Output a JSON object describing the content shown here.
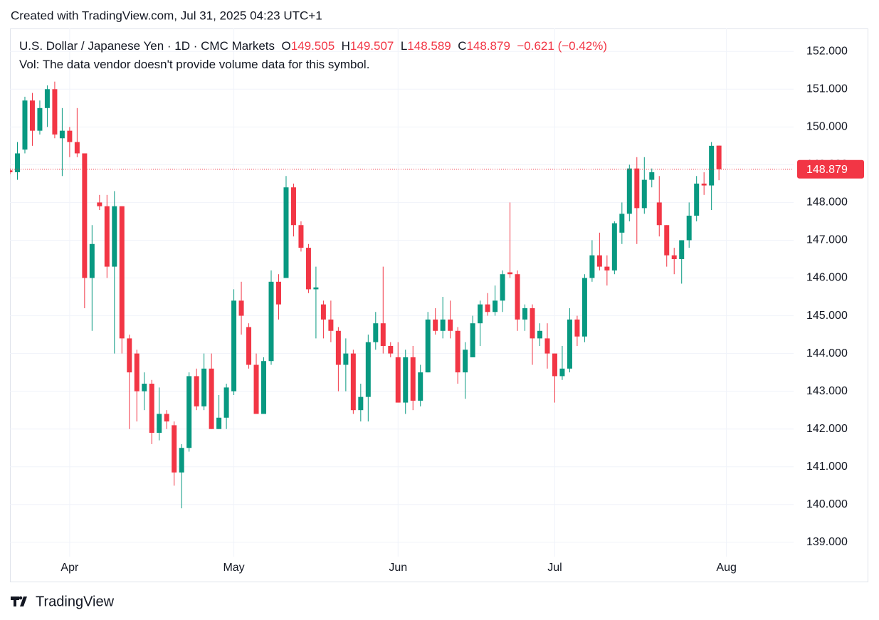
{
  "chart_data": {
    "type": "candlestick",
    "created": "Created with TradingView.com, Jul 31, 2025 04:23 UTC+1",
    "title": "U.S. Dollar / Japanese Yen · 1D · CMC Markets",
    "ohlc_labels": [
      "O",
      "H",
      "L",
      "C"
    ],
    "change": "−0.621 (−0.42%)",
    "volume_note": "Vol: The data vendor doesn't provide volume data for this symbol.",
    "brand": "TradingView",
    "up_color": "#089981",
    "down_color": "#f23645",
    "grid": true,
    "xlim": [
      0,
      105
    ],
    "xticks": [
      {
        "value": 8,
        "label": "Apr"
      },
      {
        "value": 30,
        "label": "May"
      },
      {
        "value": 52,
        "label": "Jun"
      },
      {
        "value": 73,
        "label": "Jul"
      },
      {
        "value": 96,
        "label": "Aug"
      }
    ],
    "ylim": [
      138.62,
      152.57
    ],
    "yticks": [
      {
        "value": 139,
        "label": "139.000"
      },
      {
        "value": 140,
        "label": "140.000"
      },
      {
        "value": 141,
        "label": "141.000"
      },
      {
        "value": 142,
        "label": "142.000"
      },
      {
        "value": 143,
        "label": "143.000"
      },
      {
        "value": 144,
        "label": "144.000"
      },
      {
        "value": 145,
        "label": "145.000"
      },
      {
        "value": 146,
        "label": "146.000"
      },
      {
        "value": 147,
        "label": "147.000"
      },
      {
        "value": 148,
        "label": "148.000"
      },
      {
        "value": 149,
        "label": "149.000"
      },
      {
        "value": 150,
        "label": "150.000"
      },
      {
        "value": 151,
        "label": "151.000"
      },
      {
        "value": 152,
        "label": "152.000"
      }
    ],
    "open": [
      148.85,
      148.8,
      149.4,
      150.7,
      149.9,
      150.5,
      151.0,
      149.7,
      149.9,
      149.6,
      149.3,
      146.0,
      148.0,
      147.9,
      146.3,
      147.9,
      144.4,
      144.0,
      143.0,
      143.2,
      141.9,
      142.4,
      142.1,
      140.85,
      141.5,
      143.4,
      142.6,
      143.6,
      142.0,
      142.3,
      143.0,
      145.4,
      144.7,
      143.7,
      142.4,
      143.8,
      145.9,
      146.0,
      148.4,
      147.4,
      146.8,
      145.7,
      145.3,
      144.9,
      144.6,
      143.7,
      144.0,
      142.5,
      142.85,
      144.3,
      144.8,
      144.2,
      143.9,
      142.7,
      143.9,
      142.75,
      143.5,
      144.9,
      144.6,
      144.9,
      144.6,
      143.5,
      143.9,
      144.8,
      145.3,
      145.1,
      145.4,
      146.15,
      146.1,
      144.9,
      145.2,
      144.4,
      144.4,
      144.0,
      143.4,
      143.6,
      144.9,
      144.45,
      146.0,
      146.6,
      146.3,
      146.2,
      147.2,
      147.7,
      148.9,
      147.85,
      148.6,
      148.0,
      147.4,
      146.6,
      146.5,
      147.0,
      147.65,
      148.5,
      148.45,
      149.505
    ],
    "high": [
      148.9,
      149.6,
      150.8,
      150.9,
      150.7,
      151.1,
      151.2,
      150.5,
      150.0,
      150.5,
      149.3,
      147.4,
      148.2,
      148.2,
      148.3,
      147.9,
      144.5,
      144.1,
      143.5,
      143.3,
      143.1,
      142.5,
      142.2,
      141.6,
      143.5,
      143.6,
      144.0,
      144.0,
      142.9,
      143.2,
      145.7,
      145.9,
      144.8,
      144.0,
      143.9,
      146.2,
      146.1,
      148.7,
      148.5,
      147.5,
      146.9,
      146.3,
      145.4,
      145.4,
      144.7,
      144.4,
      144.1,
      143.2,
      144.5,
      145.1,
      146.3,
      144.3,
      144.3,
      144.1,
      144.2,
      143.7,
      145.1,
      145.2,
      145.5,
      145.4,
      144.7,
      144.3,
      145.0,
      145.4,
      145.6,
      145.8,
      146.2,
      148.0,
      146.2,
      145.3,
      145.3,
      144.8,
      144.8,
      144.0,
      144.2,
      145.2,
      145.0,
      146.1,
      147.0,
      147.2,
      146.6,
      147.5,
      148.0,
      149.0,
      149.2,
      149.2,
      148.9,
      148.7,
      147.4,
      146.8,
      147.0,
      148.0,
      148.7,
      148.8,
      149.6,
      149.507
    ],
    "low": [
      148.75,
      148.6,
      149.3,
      149.5,
      149.8,
      150.0,
      149.7,
      148.7,
      149.2,
      149.2,
      145.2,
      144.6,
      147.8,
      146.0,
      144.0,
      144.0,
      142.0,
      142.2,
      142.5,
      141.6,
      141.7,
      142.0,
      140.5,
      139.9,
      141.4,
      142.5,
      142.5,
      142.0,
      142.0,
      142.0,
      142.9,
      144.5,
      143.6,
      142.4,
      142.4,
      143.7,
      144.9,
      146.0,
      147.1,
      146.7,
      145.6,
      144.4,
      144.4,
      144.3,
      143.0,
      143.0,
      142.4,
      142.2,
      142.2,
      144.1,
      144.0,
      143.9,
      142.7,
      142.4,
      142.5,
      142.6,
      143.5,
      144.5,
      144.4,
      144.4,
      143.2,
      142.8,
      143.9,
      144.2,
      145.0,
      145.0,
      145.1,
      146.0,
      144.6,
      144.6,
      143.7,
      144.2,
      143.6,
      142.7,
      143.3,
      143.5,
      144.2,
      144.3,
      145.9,
      146.2,
      145.8,
      146.1,
      146.9,
      147.5,
      146.9,
      147.7,
      148.4,
      147.1,
      146.3,
      146.1,
      145.85,
      146.8,
      147.5,
      148.2,
      147.8,
      148.589
    ],
    "close": [
      148.8,
      149.3,
      150.7,
      149.9,
      150.5,
      151.0,
      149.8,
      149.9,
      149.6,
      149.3,
      146.0,
      146.9,
      147.9,
      146.3,
      147.9,
      144.4,
      143.5,
      143.0,
      143.2,
      141.9,
      142.4,
      142.2,
      140.85,
      141.5,
      143.4,
      142.6,
      143.6,
      142.0,
      142.3,
      143.1,
      145.4,
      145.0,
      143.7,
      142.4,
      143.8,
      145.9,
      145.3,
      148.4,
      147.4,
      146.8,
      145.7,
      145.75,
      144.9,
      144.6,
      143.7,
      144.0,
      142.5,
      142.85,
      144.3,
      144.8,
      144.2,
      144.0,
      142.7,
      143.9,
      142.75,
      143.5,
      144.9,
      144.6,
      144.9,
      144.6,
      143.5,
      144.1,
      144.8,
      145.3,
      145.1,
      145.4,
      146.1,
      146.1,
      144.9,
      145.2,
      144.4,
      144.6,
      144.0,
      143.4,
      143.6,
      144.9,
      144.45,
      146.0,
      146.6,
      146.3,
      146.2,
      147.45,
      147.7,
      148.9,
      147.85,
      148.6,
      148.8,
      147.4,
      146.6,
      146.5,
      147.0,
      147.65,
      148.5,
      148.45,
      149.5,
      148.879
    ]
  }
}
